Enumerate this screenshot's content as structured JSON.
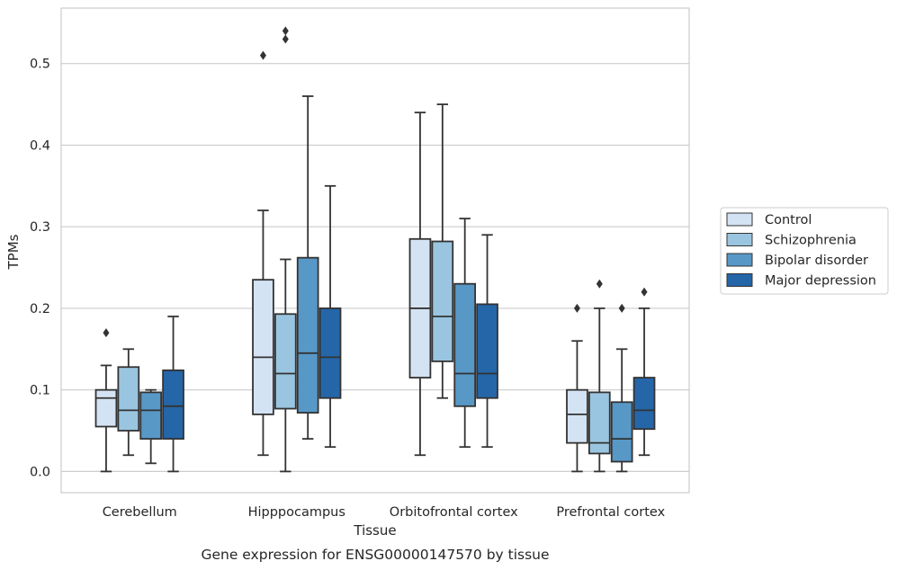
{
  "chart_data": {
    "type": "box",
    "title": "Gene expression for ENSG00000147570 by tissue",
    "xlabel": "Tissue",
    "ylabel": "TPMs",
    "ylim": [
      -0.026,
      0.568
    ],
    "yticks": [
      0.0,
      0.1,
      0.2,
      0.3,
      0.4,
      0.5
    ],
    "ytick_labels": [
      "0.0",
      "0.1",
      "0.2",
      "0.3",
      "0.4",
      "0.5"
    ],
    "grid": "horizontal",
    "legend_position": "right",
    "categories": [
      "Cerebellum",
      "Hipppocampus",
      "Orbitofrontal cortex",
      "Prefrontal cortex"
    ],
    "series": [
      {
        "name": "Control",
        "color": "#d4e3f3",
        "boxes": [
          {
            "whislo": 0.0,
            "q1": 0.055,
            "med": 0.09,
            "q3": 0.1,
            "whishi": 0.13,
            "fliers": [
              0.17
            ]
          },
          {
            "whislo": 0.02,
            "q1": 0.07,
            "med": 0.14,
            "q3": 0.235,
            "whishi": 0.32,
            "fliers": [
              0.51
            ]
          },
          {
            "whislo": 0.02,
            "q1": 0.115,
            "med": 0.2,
            "q3": 0.285,
            "whishi": 0.44,
            "fliers": []
          },
          {
            "whislo": 0.0,
            "q1": 0.035,
            "med": 0.07,
            "q3": 0.1,
            "whishi": 0.16,
            "fliers": [
              0.2
            ]
          }
        ]
      },
      {
        "name": "Schizophrenia",
        "color": "#9ac5e0",
        "boxes": [
          {
            "whislo": 0.02,
            "q1": 0.05,
            "med": 0.075,
            "q3": 0.128,
            "whishi": 0.15,
            "fliers": []
          },
          {
            "whislo": 0.0,
            "q1": 0.077,
            "med": 0.12,
            "q3": 0.193,
            "whishi": 0.26,
            "fliers": [
              0.53,
              0.54
            ]
          },
          {
            "whislo": 0.09,
            "q1": 0.135,
            "med": 0.19,
            "q3": 0.282,
            "whishi": 0.45,
            "fliers": []
          },
          {
            "whislo": 0.0,
            "q1": 0.022,
            "med": 0.035,
            "q3": 0.097,
            "whishi": 0.2,
            "fliers": [
              0.23
            ]
          }
        ]
      },
      {
        "name": "Bipolar disorder",
        "color": "#5798c7",
        "boxes": [
          {
            "whislo": 0.01,
            "q1": 0.04,
            "med": 0.075,
            "q3": 0.097,
            "whishi": 0.1,
            "fliers": []
          },
          {
            "whislo": 0.04,
            "q1": 0.072,
            "med": 0.145,
            "q3": 0.262,
            "whishi": 0.46,
            "fliers": []
          },
          {
            "whislo": 0.03,
            "q1": 0.08,
            "med": 0.12,
            "q3": 0.23,
            "whishi": 0.31,
            "fliers": []
          },
          {
            "whislo": 0.0,
            "q1": 0.012,
            "med": 0.04,
            "q3": 0.085,
            "whishi": 0.15,
            "fliers": [
              0.2
            ]
          }
        ]
      },
      {
        "name": "Major depression",
        "color": "#2566a8",
        "boxes": [
          {
            "whislo": 0.0,
            "q1": 0.04,
            "med": 0.08,
            "q3": 0.124,
            "whishi": 0.19,
            "fliers": []
          },
          {
            "whislo": 0.03,
            "q1": 0.09,
            "med": 0.14,
            "q3": 0.2,
            "whishi": 0.35,
            "fliers": []
          },
          {
            "whislo": 0.03,
            "q1": 0.09,
            "med": 0.12,
            "q3": 0.205,
            "whishi": 0.29,
            "fliers": []
          },
          {
            "whislo": 0.02,
            "q1": 0.052,
            "med": 0.075,
            "q3": 0.115,
            "whishi": 0.2,
            "fliers": [
              0.22
            ]
          }
        ]
      }
    ]
  }
}
